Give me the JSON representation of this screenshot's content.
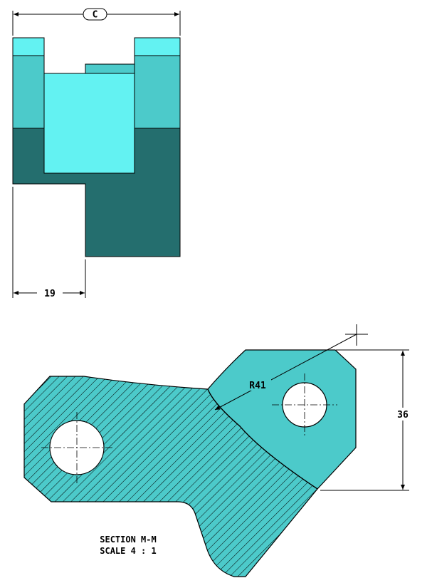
{
  "top_view": {
    "dimension_c_label": "C",
    "dimension_19_label": "19"
  },
  "section_view": {
    "radius_label": "R41",
    "dimension_36_label": "36",
    "caption_line1": "SECTION M-M",
    "caption_line2": "SCALE 4 : 1"
  },
  "colors": {
    "light_cyan": "#63f2f2",
    "mid_cyan": "#4ccaca",
    "dark_teal": "#246e6e",
    "hatch_face": "#4ccaca",
    "outline": "#000000"
  }
}
